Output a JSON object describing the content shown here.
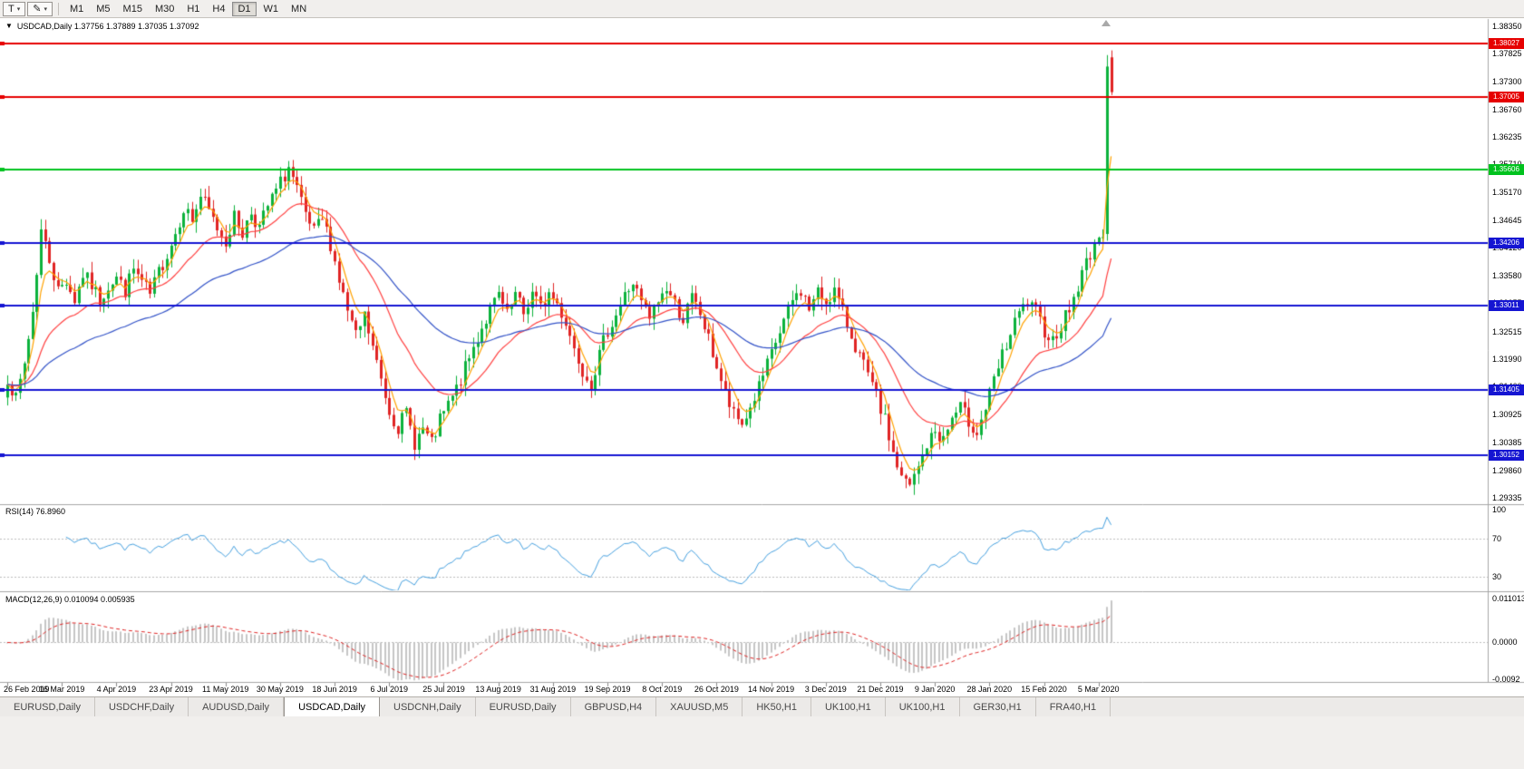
{
  "icons": {
    "triangle_down": "▼",
    "dropdown": "▾",
    "pencil": "✎"
  },
  "toolbar": {
    "text_tool_label": "T",
    "timeframes": [
      "M1",
      "M5",
      "M15",
      "M30",
      "H1",
      "H4",
      "D1",
      "W1",
      "MN"
    ],
    "active_timeframe": "D1"
  },
  "chart": {
    "header_text": "USDCAD,Daily 1.37756 1.37889 1.37035 1.37092"
  },
  "chart_data": {
    "type": "candlestick",
    "symbol": "USDCAD",
    "timeframe": "Daily",
    "current_bar": {
      "open": 1.37756,
      "high": 1.37889,
      "low": 1.37035,
      "close": 1.37092
    },
    "y_ticks": [
      "1.38350",
      "1.37825",
      "1.37300",
      "1.36760",
      "1.36235",
      "1.35710",
      "1.35170",
      "1.34645",
      "1.34120",
      "1.33580",
      "1.33055",
      "1.32515",
      "1.31990",
      "1.31460",
      "1.30925",
      "1.30385",
      "1.29860",
      "1.29335"
    ],
    "x_labels": [
      "26 Feb 2019",
      "16 Mar 2019",
      "4 Apr 2019",
      "23 Apr 2019",
      "11 May 2019",
      "30 May 2019",
      "18 Jun 2019",
      "6 Jul 2019",
      "25 Jul 2019",
      "13 Aug 2019",
      "31 Aug 2019",
      "19 Sep 2019",
      "8 Oct 2019",
      "26 Oct 2019",
      "14 Nov 2019",
      "3 Dec 2019",
      "21 Dec 2019",
      "9 Jan 2020",
      "28 Jan 2020",
      "15 Feb 2020",
      "5 Mar 2020"
    ],
    "x_label_step": 13,
    "bars": 264,
    "hlines": [
      {
        "price": 1.38027,
        "label": "1.38027",
        "color": "#e60000",
        "width": 2
      },
      {
        "price": 1.37005,
        "label": "1.37005",
        "color": "#e60000",
        "width": 2
      },
      {
        "price": 1.35606,
        "label": "1.35606",
        "color": "#00c21e",
        "width": 2
      },
      {
        "price": 1.34206,
        "label": "1.34206",
        "color": "#1515d2",
        "width": 2
      },
      {
        "price": 1.33011,
        "label": "1.33011",
        "color": "#1515d2",
        "width": 2
      },
      {
        "price": 1.31405,
        "label": "1.31405",
        "color": "#1515d2",
        "width": 2
      },
      {
        "price": 1.30152,
        "label": "1.30152",
        "color": "#1515d2",
        "width": 2
      }
    ],
    "anchors": [
      [
        0,
        1.3165
      ],
      [
        2,
        1.312
      ],
      [
        4,
        1.319
      ],
      [
        6,
        1.329
      ],
      [
        8,
        1.3445
      ],
      [
        10,
        1.339
      ],
      [
        12,
        1.333
      ],
      [
        14,
        1.335
      ],
      [
        16,
        1.3312
      ],
      [
        18,
        1.336
      ],
      [
        20,
        1.334
      ],
      [
        22,
        1.331
      ],
      [
        24,
        1.334
      ],
      [
        26,
        1.3355
      ],
      [
        28,
        1.333
      ],
      [
        30,
        1.337
      ],
      [
        32,
        1.3345
      ],
      [
        34,
        1.332
      ],
      [
        36,
        1.3365
      ],
      [
        38,
        1.34
      ],
      [
        40,
        1.344
      ],
      [
        42,
        1.349
      ],
      [
        44,
        1.3465
      ],
      [
        46,
        1.351
      ],
      [
        48,
        1.348
      ],
      [
        50,
        1.345
      ],
      [
        52,
        1.3425
      ],
      [
        54,
        1.347
      ],
      [
        56,
        1.344
      ],
      [
        58,
        1.348
      ],
      [
        60,
        1.345
      ],
      [
        62,
        1.349
      ],
      [
        64,
        1.352
      ],
      [
        66,
        1.355
      ],
      [
        67,
        1.3565
      ],
      [
        69,
        1.352
      ],
      [
        71,
        1.347
      ],
      [
        73,
        1.344
      ],
      [
        75,
        1.3465
      ],
      [
        77,
        1.342
      ],
      [
        79,
        1.335
      ],
      [
        81,
        1.329
      ],
      [
        83,
        1.324
      ],
      [
        85,
        1.328
      ],
      [
        87,
        1.322
      ],
      [
        89,
        1.316
      ],
      [
        91,
        1.31
      ],
      [
        93,
        1.307
      ],
      [
        95,
        1.3095
      ],
      [
        97,
        1.304
      ],
      [
        99,
        1.3065
      ],
      [
        101,
        1.3035
      ],
      [
        103,
        1.308
      ],
      [
        105,
        1.311
      ],
      [
        107,
        1.314
      ],
      [
        109,
        1.318
      ],
      [
        111,
        1.322
      ],
      [
        113,
        1.326
      ],
      [
        115,
        1.329
      ],
      [
        117,
        1.332
      ],
      [
        119,
        1.328
      ],
      [
        121,
        1.332
      ],
      [
        123,
        1.3285
      ],
      [
        125,
        1.3325
      ],
      [
        127,
        1.3295
      ],
      [
        129,
        1.3325
      ],
      [
        131,
        1.3305
      ],
      [
        133,
        1.327
      ],
      [
        135,
        1.322
      ],
      [
        137,
        1.318
      ],
      [
        139,
        1.3155
      ],
      [
        141,
        1.3205
      ],
      [
        143,
        1.3255
      ],
      [
        145,
        1.3285
      ],
      [
        147,
        1.332
      ],
      [
        149,
        1.3345
      ],
      [
        151,
        1.3305
      ],
      [
        153,
        1.3275
      ],
      [
        155,
        1.331
      ],
      [
        157,
        1.3335
      ],
      [
        159,
        1.3305
      ],
      [
        161,
        1.3275
      ],
      [
        163,
        1.3315
      ],
      [
        165,
        1.3285
      ],
      [
        167,
        1.3235
      ],
      [
        169,
        1.3185
      ],
      [
        171,
        1.313
      ],
      [
        173,
        1.309
      ],
      [
        175,
        1.3075
      ],
      [
        177,
        1.3105
      ],
      [
        179,
        1.3145
      ],
      [
        181,
        1.3185
      ],
      [
        183,
        1.323
      ],
      [
        185,
        1.327
      ],
      [
        187,
        1.331
      ],
      [
        189,
        1.333
      ],
      [
        191,
        1.3295
      ],
      [
        193,
        1.3325
      ],
      [
        195,
        1.331
      ],
      [
        197,
        1.333
      ],
      [
        199,
        1.3285
      ],
      [
        201,
        1.3245
      ],
      [
        203,
        1.3205
      ],
      [
        205,
        1.3165
      ],
      [
        207,
        1.3125
      ],
      [
        209,
        1.308
      ],
      [
        211,
        1.302
      ],
      [
        213,
        1.297
      ],
      [
        215,
        1.2955
      ],
      [
        217,
        1.299
      ],
      [
        219,
        1.3035
      ],
      [
        221,
        1.306
      ],
      [
        223,
        1.3045
      ],
      [
        225,
        1.3085
      ],
      [
        227,
        1.3105
      ],
      [
        229,
        1.308
      ],
      [
        231,
        1.306
      ],
      [
        233,
        1.3105
      ],
      [
        235,
        1.3155
      ],
      [
        237,
        1.3205
      ],
      [
        239,
        1.3245
      ],
      [
        241,
        1.3285
      ],
      [
        243,
        1.3305
      ],
      [
        245,
        1.3285
      ],
      [
        247,
        1.3255
      ],
      [
        249,
        1.3235
      ],
      [
        251,
        1.3265
      ],
      [
        253,
        1.3295
      ],
      [
        255,
        1.3335
      ],
      [
        257,
        1.3385
      ],
      [
        259,
        1.342
      ],
      [
        261,
        1.3435
      ],
      [
        262,
        1.3758
      ],
      [
        263,
        1.3709
      ]
    ],
    "last_candles": [
      [
        1.3438,
        1.378,
        1.3425,
        1.3758
      ],
      [
        1.37756,
        1.37889,
        1.37035,
        1.37092
      ]
    ],
    "moving_averages": [
      {
        "period": 5,
        "color": "#ffa200"
      },
      {
        "period": 21,
        "color": "#ff4040"
      },
      {
        "period": 55,
        "color": "#3353c8"
      }
    ],
    "colors": {
      "up": "#0bb23c",
      "down": "#e02424",
      "rsi": "#46a1e0",
      "macd_hist": "#c6c6c6",
      "macd_signal": "#e02424",
      "level_dotted": "#bdbdbd",
      "separator": "#a6a6a6"
    },
    "indicators": [
      {
        "name": "RSI",
        "label": "RSI(14) 76.8960",
        "value": 76.896,
        "levels": [
          {
            "label": "100",
            "value": 100
          },
          {
            "label": "70",
            "value": 70
          },
          {
            "label": "30",
            "value": 30
          }
        ],
        "dotted_levels": [
          70,
          30
        ]
      },
      {
        "name": "MACD",
        "label": "MACD(12,26,9) 0.010094 0.005935",
        "values": [
          0.010094,
          0.005935
        ],
        "axis": [
          {
            "label": "0.011013",
            "value": 0.011013
          },
          {
            "label": "0.0000",
            "value": 0
          },
          {
            "label": "-0.0092",
            "value": -0.0092
          }
        ]
      }
    ]
  },
  "tabs": {
    "items": [
      "EURUSD,Daily",
      "USDCHF,Daily",
      "AUDUSD,Daily",
      "USDCAD,Daily",
      "USDCNH,Daily",
      "EURUSD,Daily",
      "GBPUSD,H4",
      "XAUUSD,M5",
      "HK50,H1",
      "UK100,H1",
      "UK100,H1",
      "GER30,H1",
      "FRA40,H1"
    ],
    "active_index": 3
  }
}
